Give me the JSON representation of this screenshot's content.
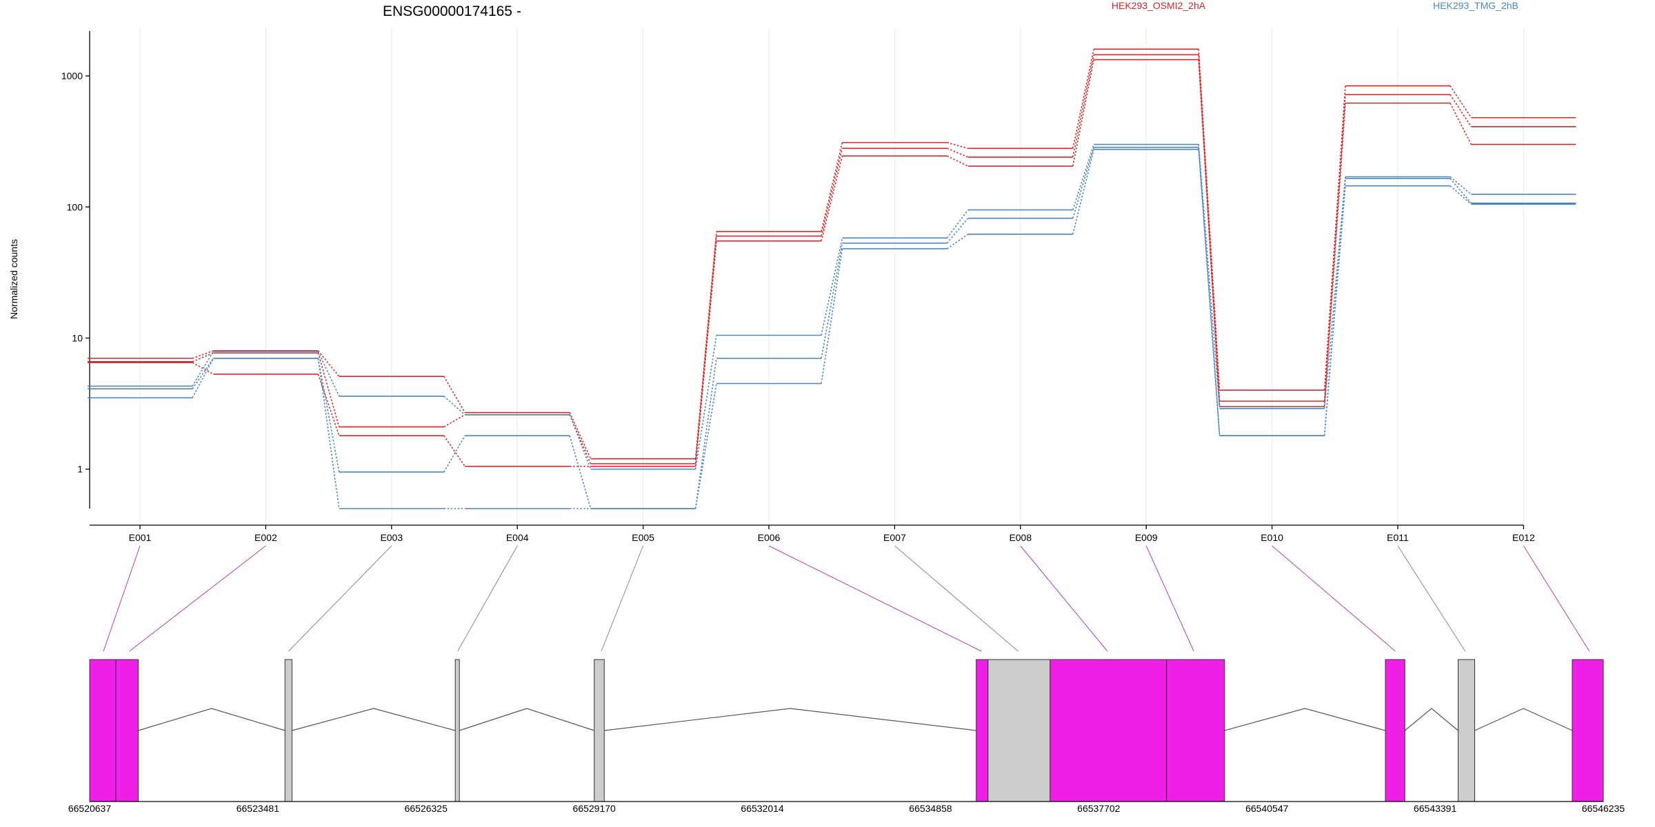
{
  "chart_data": {
    "type": "line",
    "title": "ENSG00000174165 -",
    "ylabel": "Normalized counts",
    "xlabel": "",
    "yscale": "log",
    "ylim": [
      0.5,
      2200
    ],
    "yticks": [
      1,
      10,
      100,
      1000
    ],
    "ytick_labels": [
      "1",
      "10",
      "100",
      "1000"
    ],
    "grid": "vertical",
    "legend_position": "top",
    "categories": [
      "E001",
      "E002",
      "E003",
      "E004",
      "E005",
      "E006",
      "E007",
      "E008",
      "E009",
      "E010",
      "E011",
      "E012"
    ],
    "series": [
      {
        "name": "HEK293_OSMI2_2hA",
        "color": "#d62728",
        "lines": [
          [
            7.0,
            8.0,
            5.1,
            2.7,
            1.2,
            65,
            310,
            280,
            1600,
            4.0,
            840,
            480
          ],
          [
            6.6,
            7.7,
            2.1,
            2.6,
            1.1,
            60,
            280,
            240,
            1450,
            3.3,
            720,
            410
          ],
          [
            6.5,
            5.3,
            1.8,
            1.05,
            1.05,
            55,
            245,
            205,
            1330,
            3.0,
            620,
            300
          ]
        ]
      },
      {
        "name": "HEK293_TMG_2hB",
        "color": "#4a86c0",
        "lines": [
          [
            4.3,
            7.9,
            3.6,
            2.6,
            1.0,
            10.5,
            58,
            95,
            300,
            2.9,
            170,
            125
          ],
          [
            4.1,
            7.0,
            0.95,
            1.8,
            0.5,
            7.0,
            53,
            82,
            285,
            1.8,
            165,
            107
          ],
          [
            3.5,
            7.0,
            0.5,
            0.5,
            0.5,
            4.5,
            48,
            62,
            275,
            1.8,
            145,
            105
          ]
        ]
      }
    ],
    "gene_model": {
      "genomic_ticks": [
        66520637,
        66523481,
        66526325,
        66529170,
        66532014,
        66534858,
        66537702,
        66540547,
        66543391,
        66546235
      ],
      "exons": [
        {
          "start": 66520637,
          "end": 66521080,
          "highlight": true
        },
        {
          "start": 66521080,
          "end": 66521460,
          "highlight": true
        },
        {
          "start": 66523940,
          "end": 66524060,
          "highlight": false
        },
        {
          "start": 66526820,
          "end": 66526890,
          "highlight": false
        },
        {
          "start": 66529170,
          "end": 66529340,
          "highlight": false
        },
        {
          "start": 66535630,
          "end": 66535830,
          "highlight": true
        },
        {
          "start": 66535830,
          "end": 66536880,
          "highlight": false
        },
        {
          "start": 66536880,
          "end": 66538850,
          "highlight": true
        },
        {
          "start": 66538850,
          "end": 66539830,
          "highlight": true
        },
        {
          "start": 66542550,
          "end": 66542880,
          "highlight": true
        },
        {
          "start": 66543780,
          "end": 66544060,
          "highlight": false
        },
        {
          "start": 66545710,
          "end": 66546235,
          "highlight": true
        }
      ],
      "bin_links": [
        {
          "pos": 66520870,
          "highlight": true
        },
        {
          "pos": 66521310,
          "highlight": true
        },
        {
          "pos": 66524000,
          "highlight": false
        },
        {
          "pos": 66526860,
          "highlight": false
        },
        {
          "pos": 66529290,
          "highlight": false
        },
        {
          "pos": 66535720,
          "highlight": true
        },
        {
          "pos": 66536340,
          "highlight": false
        },
        {
          "pos": 66537850,
          "highlight": true
        },
        {
          "pos": 66539310,
          "highlight": true
        },
        {
          "pos": 66542720,
          "highlight": true
        },
        {
          "pos": 66543900,
          "highlight": false
        },
        {
          "pos": 66546000,
          "highlight": true
        }
      ],
      "exon_color": "#f01fe8",
      "other_color": "#cccccc"
    }
  }
}
